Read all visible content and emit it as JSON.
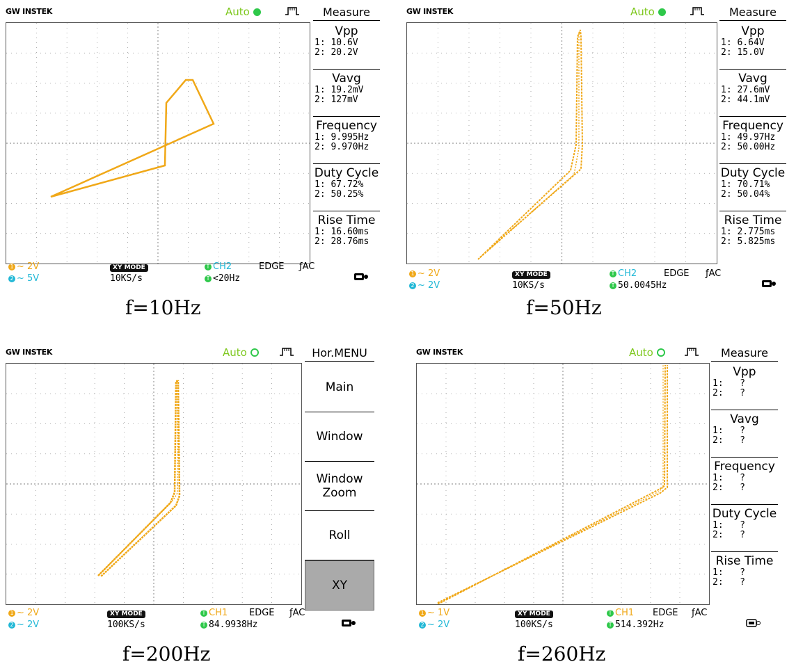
{
  "scopes": [
    {
      "brand": "GW INSTEK",
      "trigger": "Auto",
      "right_panel": {
        "title": "Measure",
        "items": [
          {
            "name": "Vpp",
            "v1": "1: 10.6V",
            "v2": "2: 20.2V"
          },
          {
            "name": "Vavg",
            "v1": "1: 19.2mV",
            "v2": "2: 127mV"
          },
          {
            "name": "Frequency",
            "v1": "1: 9.995Hz",
            "v2": "2: 9.970Hz"
          },
          {
            "name": "Duty Cycle",
            "v1": "1: 67.72%",
            "v2": "2: 50.25%"
          },
          {
            "name": "Rise Time",
            "v1": "1: 16.60ms",
            "v2": "2: 28.76ms"
          }
        ]
      },
      "status": {
        "ch1_scale": "2V",
        "ch2_scale": "5V",
        "mode": "XY MODE",
        "sample_rate": "10KS/s",
        "trig_src": "CH2",
        "trig_type": "EDGE",
        "coupling": "AC",
        "trig_freq": "<20Hz"
      },
      "caption": "f=10Hz"
    },
    {
      "brand": "GW INSTEK",
      "trigger": "Auto",
      "right_panel": {
        "title": "Measure",
        "items": [
          {
            "name": "Vpp",
            "v1": "1: 6.64V",
            "v2": "2: 15.0V"
          },
          {
            "name": "Vavg",
            "v1": "1: 27.6mV",
            "v2": "2: 44.1mV"
          },
          {
            "name": "Frequency",
            "v1": "1: 49.97Hz",
            "v2": "2: 50.00Hz"
          },
          {
            "name": "Duty Cycle",
            "v1": "1: 70.71%",
            "v2": "2: 50.04%"
          },
          {
            "name": "Rise Time",
            "v1": "1: 2.775ms",
            "v2": "2: 5.825ms"
          }
        ]
      },
      "status": {
        "ch1_scale": "2V",
        "ch2_scale": "2V",
        "mode": "XY MODE",
        "sample_rate": "10KS/s",
        "trig_src": "CH2",
        "trig_type": "EDGE",
        "coupling": "AC",
        "trig_freq": "50.0045Hz"
      },
      "caption": "f=50Hz"
    },
    {
      "brand": "GW INSTEK",
      "trigger": "Auto",
      "right_panel": {
        "title": "Hor.MENU",
        "items": [
          {
            "label": "Main"
          },
          {
            "label": "Window"
          },
          {
            "label": "Window\nZoom"
          },
          {
            "label": "Roll"
          },
          {
            "label": "XY",
            "selected": true
          }
        ]
      },
      "status": {
        "ch1_scale": "2V",
        "ch2_scale": "2V",
        "mode": "XY MODE",
        "sample_rate": "100KS/s",
        "trig_src": "CH1",
        "trig_type": "EDGE",
        "coupling": "AC",
        "trig_freq": "84.9938Hz"
      },
      "caption": "f=200Hz"
    },
    {
      "brand": "GW INSTEK",
      "trigger": "Auto",
      "right_panel": {
        "title": "Measure",
        "items": [
          {
            "name": "Vpp",
            "v1": "1:   ?",
            "v2": "2:   ?"
          },
          {
            "name": "Vavg",
            "v1": "1:   ?",
            "v2": "2:   ?"
          },
          {
            "name": "Frequency",
            "v1": "1:   ?",
            "v2": "2:   ?"
          },
          {
            "name": "Duty Cycle",
            "v1": "1:   ?",
            "v2": "2:   ?"
          },
          {
            "name": "Rise Time",
            "v1": "1:   ?",
            "v2": "2:   ?"
          }
        ]
      },
      "status": {
        "ch1_scale": "1V",
        "ch2_scale": "2V",
        "mode": "XY MODE",
        "sample_rate": "100KS/s",
        "trig_src": "CH1",
        "trig_type": "EDGE",
        "coupling": "AC",
        "trig_freq": "514.392Hz"
      },
      "caption": "f=260Hz"
    }
  ],
  "colors": {
    "trace": "#f0a818",
    "ch1": "#f0a818",
    "ch2": "#22b8d6",
    "auto_text": "#7ec81e",
    "auto_dot": "#2ec84a"
  },
  "icons": {
    "usb": "usb-icon",
    "pulse": "trigger-pulse-icon",
    "edge": "rising-edge-icon"
  }
}
